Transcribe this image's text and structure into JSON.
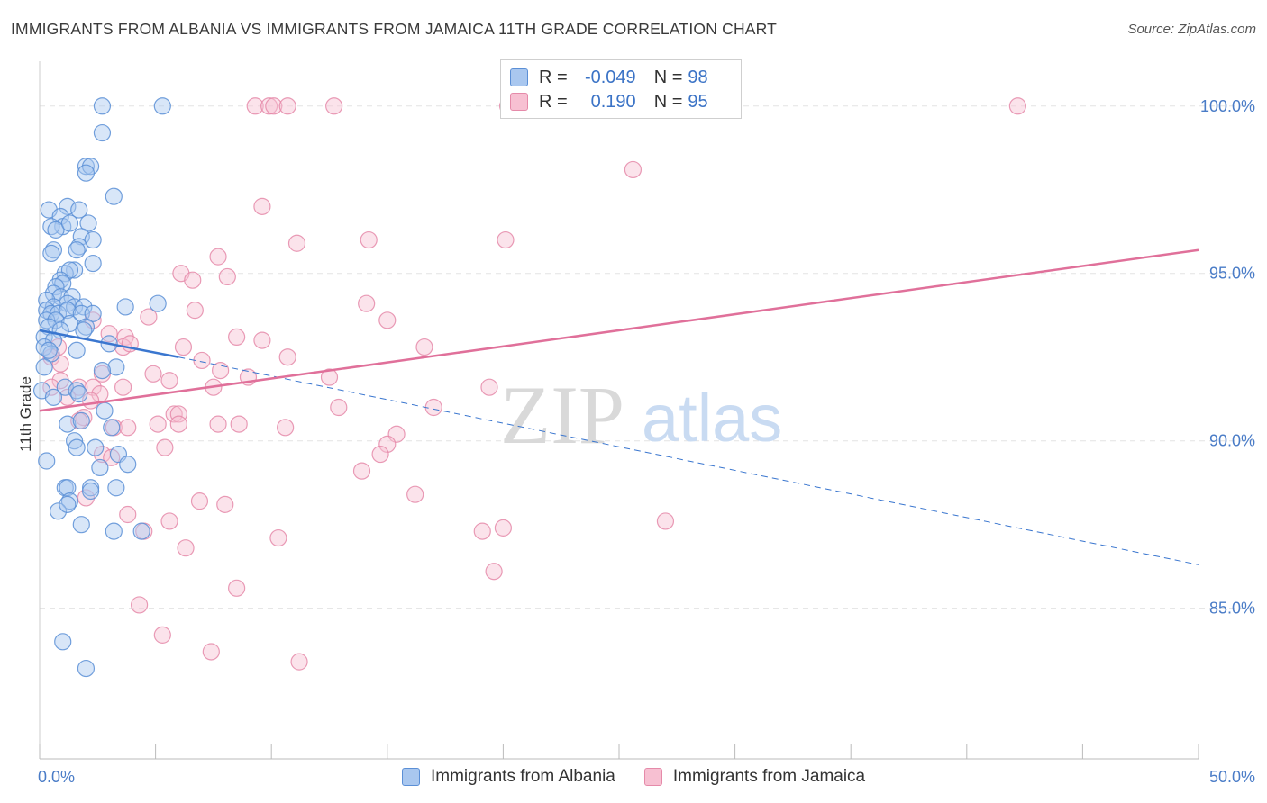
{
  "header": {
    "title": "IMMIGRANTS FROM ALBANIA VS IMMIGRANTS FROM JAMAICA 11TH GRADE CORRELATION CHART",
    "source": "Source: ZipAtlas.com"
  },
  "watermark": {
    "zip": "ZIP",
    "atlas": "atlas"
  },
  "legend": {
    "rows": [
      {
        "r_label": "R =",
        "r_value": "-0.049",
        "n_label": "N =",
        "n_value": "98"
      },
      {
        "r_label": "R =",
        "r_value": "0.190",
        "n_label": "N =",
        "n_value": "95"
      }
    ]
  },
  "bottom_legend": {
    "albania": "Immigrants from Albania",
    "jamaica": "Immigrants from Jamaica"
  },
  "colors": {
    "albania_fill": "#a9c7ef",
    "albania_stroke": "#5b8fd6",
    "albania_line": "#3a76cf",
    "jamaica_fill": "#f7c0d2",
    "jamaica_stroke": "#e58aa9",
    "jamaica_line": "#e0709a",
    "grid": "#e3e3e3",
    "tick_text": "#4a7cc7"
  },
  "chart_data": {
    "type": "scatter",
    "title": "IMMIGRANTS FROM ALBANIA VS IMMIGRANTS FROM JAMAICA 11TH GRADE CORRELATION CHART",
    "xlabel": "",
    "ylabel": "11th Grade",
    "xlim": [
      0,
      50
    ],
    "ylim": [
      80.5,
      101.5
    ],
    "x_tick_labels": [
      {
        "value": 0,
        "label": "0.0%"
      },
      {
        "value": 50,
        "label": "50.0%"
      }
    ],
    "y_tick_labels": [
      {
        "value": 100,
        "label": "100.0%"
      },
      {
        "value": 95,
        "label": "95.0%"
      },
      {
        "value": 90,
        "label": "90.0%"
      },
      {
        "value": 85,
        "label": "85.0%"
      }
    ],
    "series": [
      {
        "name": "Immigrants from Albania",
        "r": -0.049,
        "n": 98,
        "trend_solid": {
          "x": [
            0,
            6
          ],
          "y": [
            93.3,
            92.5
          ]
        },
        "trend_dashed": {
          "x": [
            6,
            50
          ],
          "y": [
            92.5,
            86.3
          ]
        },
        "points": [
          [
            2.7,
            100
          ],
          [
            5.3,
            100
          ],
          [
            2.7,
            99.2
          ],
          [
            2.0,
            98.2
          ],
          [
            2.2,
            98.2
          ],
          [
            2.0,
            98.0
          ],
          [
            3.2,
            97.3
          ],
          [
            1.2,
            97.0
          ],
          [
            0.4,
            96.9
          ],
          [
            0.9,
            96.7
          ],
          [
            1.7,
            96.9
          ],
          [
            2.1,
            96.5
          ],
          [
            1.0,
            96.4
          ],
          [
            0.5,
            96.4
          ],
          [
            0.7,
            96.3
          ],
          [
            1.3,
            96.5
          ],
          [
            1.8,
            96.1
          ],
          [
            2.3,
            96.0
          ],
          [
            1.7,
            95.8
          ],
          [
            1.6,
            95.7
          ],
          [
            0.6,
            95.7
          ],
          [
            0.5,
            95.6
          ],
          [
            2.3,
            95.3
          ],
          [
            1.5,
            95.1
          ],
          [
            1.1,
            95.0
          ],
          [
            1.3,
            95.1
          ],
          [
            0.9,
            94.8
          ],
          [
            1.0,
            94.7
          ],
          [
            0.7,
            94.6
          ],
          [
            0.6,
            94.4
          ],
          [
            0.9,
            94.3
          ],
          [
            1.4,
            94.3
          ],
          [
            0.3,
            94.2
          ],
          [
            0.6,
            94.0
          ],
          [
            1.2,
            94.1
          ],
          [
            1.5,
            94.0
          ],
          [
            1.9,
            94.0
          ],
          [
            3.7,
            94.0
          ],
          [
            5.1,
            94.1
          ],
          [
            0.3,
            93.9
          ],
          [
            0.5,
            93.8
          ],
          [
            0.8,
            93.8
          ],
          [
            1.2,
            93.9
          ],
          [
            1.8,
            93.8
          ],
          [
            2.3,
            93.8
          ],
          [
            0.3,
            93.6
          ],
          [
            0.7,
            93.6
          ],
          [
            1.3,
            93.5
          ],
          [
            2.0,
            93.4
          ],
          [
            0.4,
            93.4
          ],
          [
            0.9,
            93.3
          ],
          [
            1.9,
            93.3
          ],
          [
            0.2,
            93.1
          ],
          [
            0.6,
            93.0
          ],
          [
            3.0,
            92.9
          ],
          [
            0.2,
            92.8
          ],
          [
            0.5,
            92.6
          ],
          [
            0.4,
            92.7
          ],
          [
            1.6,
            92.7
          ],
          [
            0.2,
            92.2
          ],
          [
            3.3,
            92.2
          ],
          [
            2.7,
            92.1
          ],
          [
            1.1,
            91.6
          ],
          [
            1.6,
            91.5
          ],
          [
            1.7,
            91.4
          ],
          [
            0.1,
            91.5
          ],
          [
            0.6,
            91.3
          ],
          [
            2.8,
            90.9
          ],
          [
            1.2,
            90.5
          ],
          [
            1.8,
            90.6
          ],
          [
            3.1,
            90.4
          ],
          [
            1.5,
            90.0
          ],
          [
            1.6,
            89.8
          ],
          [
            2.4,
            89.8
          ],
          [
            3.4,
            89.6
          ],
          [
            0.3,
            89.4
          ],
          [
            3.8,
            89.3
          ],
          [
            2.6,
            89.2
          ],
          [
            1.1,
            88.6
          ],
          [
            1.2,
            88.6
          ],
          [
            3.3,
            88.6
          ],
          [
            2.2,
            88.6
          ],
          [
            2.2,
            88.5
          ],
          [
            1.3,
            88.2
          ],
          [
            0.8,
            87.9
          ],
          [
            1.2,
            88.1
          ],
          [
            1.8,
            87.5
          ],
          [
            3.2,
            87.3
          ],
          [
            4.4,
            87.3
          ],
          [
            1.0,
            84.0
          ],
          [
            2.0,
            83.2
          ]
        ]
      },
      {
        "name": "Immigrants from Jamaica",
        "r": 0.19,
        "n": 95,
        "trend_solid": {
          "x": [
            0,
            50
          ],
          "y": [
            90.9,
            95.7
          ]
        },
        "points": [
          [
            9.3,
            100
          ],
          [
            9.9,
            100
          ],
          [
            10.1,
            100
          ],
          [
            10.7,
            100
          ],
          [
            12.7,
            100
          ],
          [
            20.2,
            100
          ],
          [
            42.2,
            100
          ],
          [
            25.6,
            98.1
          ],
          [
            9.6,
            97.0
          ],
          [
            11.1,
            95.9
          ],
          [
            14.2,
            96.0
          ],
          [
            20.1,
            96.0
          ],
          [
            7.7,
            95.5
          ],
          [
            6.1,
            95.0
          ],
          [
            8.1,
            94.9
          ],
          [
            6.6,
            94.8
          ],
          [
            14.1,
            94.1
          ],
          [
            6.7,
            93.9
          ],
          [
            4.7,
            93.7
          ],
          [
            15.0,
            93.6
          ],
          [
            2.3,
            93.6
          ],
          [
            3.7,
            93.1
          ],
          [
            3.0,
            93.2
          ],
          [
            8.5,
            93.1
          ],
          [
            9.6,
            93.0
          ],
          [
            3.6,
            92.8
          ],
          [
            3.9,
            92.9
          ],
          [
            6.2,
            92.8
          ],
          [
            16.6,
            92.8
          ],
          [
            0.8,
            92.8
          ],
          [
            0.5,
            92.5
          ],
          [
            7.0,
            92.4
          ],
          [
            10.7,
            92.5
          ],
          [
            0.9,
            92.3
          ],
          [
            7.8,
            92.1
          ],
          [
            4.9,
            92.0
          ],
          [
            2.7,
            92.0
          ],
          [
            9.0,
            91.9
          ],
          [
            12.5,
            91.9
          ],
          [
            0.9,
            91.8
          ],
          [
            5.6,
            91.8
          ],
          [
            0.5,
            91.6
          ],
          [
            3.6,
            91.6
          ],
          [
            7.5,
            91.6
          ],
          [
            19.4,
            91.6
          ],
          [
            2.3,
            91.6
          ],
          [
            1.7,
            91.6
          ],
          [
            2.6,
            91.4
          ],
          [
            1.2,
            91.3
          ],
          [
            2.2,
            91.2
          ],
          [
            17.0,
            91.0
          ],
          [
            12.9,
            91.0
          ],
          [
            5.8,
            90.8
          ],
          [
            6.0,
            90.8
          ],
          [
            1.9,
            90.7
          ],
          [
            1.7,
            90.6
          ],
          [
            8.6,
            90.5
          ],
          [
            5.1,
            90.5
          ],
          [
            6.0,
            90.5
          ],
          [
            3.2,
            90.4
          ],
          [
            3.8,
            90.4
          ],
          [
            10.6,
            90.4
          ],
          [
            7.7,
            90.5
          ],
          [
            15.4,
            90.2
          ],
          [
            15.0,
            89.9
          ],
          [
            5.4,
            89.8
          ],
          [
            14.7,
            89.6
          ],
          [
            2.7,
            89.6
          ],
          [
            3.1,
            89.5
          ],
          [
            13.9,
            89.1
          ],
          [
            16.2,
            88.4
          ],
          [
            2.0,
            88.3
          ],
          [
            6.9,
            88.2
          ],
          [
            8.0,
            88.1
          ],
          [
            3.8,
            87.8
          ],
          [
            5.6,
            87.6
          ],
          [
            27.0,
            87.6
          ],
          [
            19.1,
            87.3
          ],
          [
            20.0,
            87.4
          ],
          [
            4.5,
            87.3
          ],
          [
            10.3,
            87.1
          ],
          [
            6.3,
            86.8
          ],
          [
            19.6,
            86.1
          ],
          [
            8.5,
            85.6
          ],
          [
            4.3,
            85.1
          ],
          [
            5.3,
            84.2
          ],
          [
            7.4,
            83.7
          ],
          [
            11.2,
            83.4
          ]
        ]
      }
    ]
  }
}
